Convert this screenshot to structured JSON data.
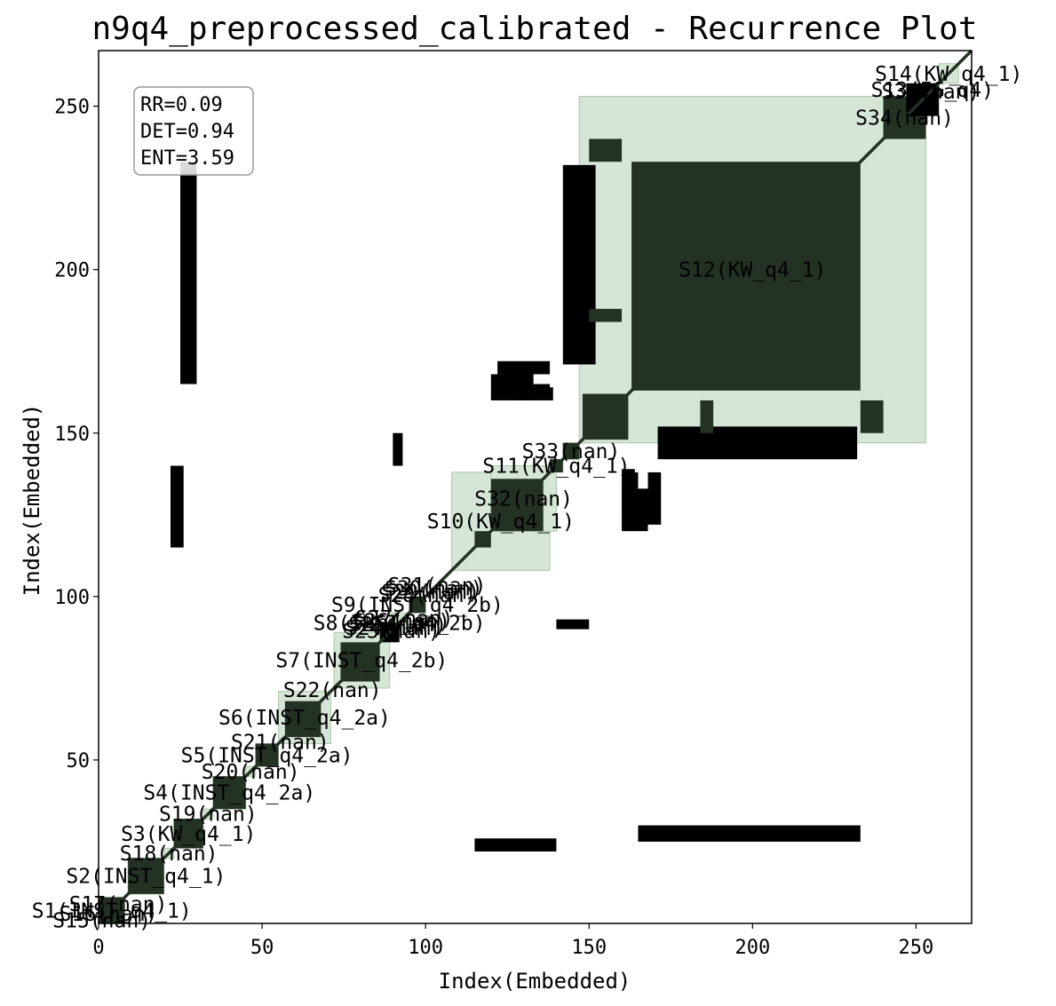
{
  "chart_data": {
    "type": "heatmap",
    "title": "n9q4_preprocessed_calibrated - Recurrence Plot",
    "xlabel": "Index(Embedded)",
    "ylabel": "Index(Embedded)",
    "xlim": [
      0,
      267
    ],
    "ylim": [
      0,
      267
    ],
    "xticks": [
      0,
      50,
      100,
      150,
      200,
      250
    ],
    "yticks": [
      50,
      100,
      150,
      200,
      250
    ],
    "grid": false,
    "stats": [
      "RR=0.09",
      "DET=0.94",
      "ENT=3.59"
    ],
    "colors": {
      "recurrence": "#000000",
      "segment_fill": "#d6e6d6",
      "segment_edge": "#a9c8a9",
      "segment_recurrence": "#243224",
      "stats_border": "#999999"
    },
    "segments": [
      {
        "label": "S1(INST_q4_1)",
        "start": 0,
        "end": 8
      },
      {
        "label": "S2(INST_q4_1)",
        "start": 9,
        "end": 20
      },
      {
        "label": "S3(KW_q4_1)",
        "start": 23,
        "end": 32
      },
      {
        "label": "S4(INST_q4_2a)",
        "start": 35,
        "end": 45
      },
      {
        "label": "S5(INST_q4_2a)",
        "start": 48,
        "end": 55
      },
      {
        "label": "S6(INST_q4_2a)",
        "start": 55,
        "end": 71
      },
      {
        "label": "S7(INST_q4_2b)",
        "start": 72,
        "end": 89
      },
      {
        "label": "S8(INST_q4_2b)",
        "start": 89,
        "end": 95
      },
      {
        "label": "S9(INST_q4_2b)",
        "start": 95,
        "end": 100
      },
      {
        "label": "S10(KW_q4_1)",
        "start": 108,
        "end": 138
      },
      {
        "label": "S11(KW_q4_1)",
        "start": 138,
        "end": 142
      },
      {
        "label": "S12(KW_q4_1)",
        "start": 147,
        "end": 253
      },
      {
        "label": "S13(IG_q4)",
        "start": 253,
        "end": 257
      },
      {
        "label": "S14(KW_q4_1)",
        "start": 257,
        "end": 263
      },
      {
        "label": "S15(nan)",
        "start": 0,
        "end": 2
      },
      {
        "label": "S16(nan)",
        "start": 2,
        "end": 4
      },
      {
        "label": "S17(nan)",
        "start": 4,
        "end": 8
      },
      {
        "label": "S18(nan)",
        "start": 20,
        "end": 23
      },
      {
        "label": "S19(nan)",
        "start": 32,
        "end": 35
      },
      {
        "label": "S20(nan)",
        "start": 45,
        "end": 48
      },
      {
        "label": "S21(nan)",
        "start": 55,
        "end": 56
      },
      {
        "label": "S22(nan)",
        "start": 71,
        "end": 72
      },
      {
        "label": "S23(nan)",
        "start": 89,
        "end": 90
      },
      {
        "label": "S24(nan)",
        "start": 90,
        "end": 91
      },
      {
        "label": "S25(nan)",
        "start": 91,
        "end": 92
      },
      {
        "label": "S26(nan)",
        "start": 92,
        "end": 93
      },
      {
        "label": "S27(nan)",
        "start": 93,
        "end": 94
      },
      {
        "label": "S28(nan)",
        "start": 100,
        "end": 101
      },
      {
        "label": "S29(nan)",
        "start": 101,
        "end": 102
      },
      {
        "label": "S30(nan)",
        "start": 102,
        "end": 103
      },
      {
        "label": "S31(nan)",
        "start": 103,
        "end": 104
      },
      {
        "label": "S32(nan)",
        "start": 120,
        "end": 140
      },
      {
        "label": "S33(nan)",
        "start": 142,
        "end": 147
      },
      {
        "label": "S34(nan)",
        "start": 240,
        "end": 253
      },
      {
        "label": "S35(nan)",
        "start": 253,
        "end": 256
      }
    ],
    "recurrence_blocks": [
      [
        0,
        8,
        0,
        8
      ],
      [
        9,
        20,
        9,
        20
      ],
      [
        23,
        32,
        23,
        32
      ],
      [
        35,
        45,
        35,
        45
      ],
      [
        48,
        55,
        48,
        55
      ],
      [
        57,
        68,
        57,
        68
      ],
      [
        74,
        86,
        74,
        86
      ],
      [
        86,
        92,
        86,
        92
      ],
      [
        95,
        100,
        95,
        100
      ],
      [
        115,
        120,
        115,
        120
      ],
      [
        120,
        136,
        120,
        136
      ],
      [
        138,
        142,
        138,
        142
      ],
      [
        142,
        147,
        142,
        147
      ],
      [
        148,
        162,
        148,
        162
      ],
      [
        163,
        233,
        163,
        233
      ],
      [
        240,
        253,
        240,
        253
      ],
      [
        247,
        257,
        247,
        257
      ],
      [
        251,
        255,
        251,
        255
      ],
      [
        165,
        233,
        25,
        30
      ],
      [
        25,
        30,
        165,
        233
      ],
      [
        90,
        93,
        140,
        150
      ],
      [
        140,
        150,
        90,
        93
      ],
      [
        22,
        26,
        115,
        140
      ],
      [
        115,
        140,
        22,
        26
      ],
      [
        120,
        133,
        160,
        168
      ],
      [
        160,
        168,
        120,
        133
      ],
      [
        122,
        138,
        168,
        172
      ],
      [
        168,
        172,
        122,
        138
      ],
      [
        127,
        139,
        160,
        164
      ],
      [
        160,
        164,
        127,
        139
      ],
      [
        171,
        232,
        142,
        152
      ],
      [
        142,
        152,
        171,
        232
      ],
      [
        133,
        138,
        162,
        165
      ],
      [
        162,
        165,
        133,
        138
      ],
      [
        184,
        188,
        150,
        160
      ],
      [
        150,
        160,
        184,
        188
      ],
      [
        150,
        160,
        233,
        240
      ],
      [
        233,
        240,
        150,
        160
      ]
    ],
    "recurrence_lines": [
      [
        0,
        267,
        0,
        267
      ]
    ]
  }
}
